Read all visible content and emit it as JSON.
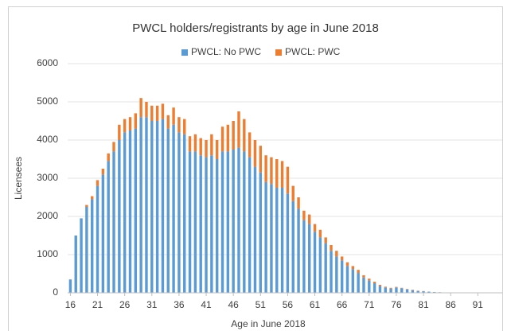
{
  "chart_data": {
    "type": "stacked_bar",
    "title": "PWCL holders/registrants by age in June 2018",
    "x_label": "Age in June 2018",
    "y_label": "Licensees",
    "x": [
      16,
      17,
      18,
      19,
      20,
      21,
      22,
      23,
      24,
      25,
      26,
      27,
      28,
      29,
      30,
      31,
      32,
      33,
      34,
      35,
      36,
      37,
      38,
      39,
      40,
      41,
      42,
      43,
      44,
      45,
      46,
      47,
      48,
      49,
      50,
      51,
      52,
      53,
      54,
      55,
      56,
      57,
      58,
      59,
      60,
      61,
      62,
      63,
      64,
      65,
      66,
      67,
      68,
      69,
      70,
      71,
      72,
      73,
      74,
      75,
      76,
      77,
      78,
      79,
      80,
      81,
      82,
      83,
      84,
      85,
      86,
      87,
      88,
      89,
      90,
      91,
      92,
      93,
      94,
      95
    ],
    "series": [
      {
        "name": "PWCL: No PWC",
        "color": "#5b9bd5",
        "values": [
          350,
          1500,
          1950,
          2250,
          2450,
          2800,
          3100,
          3450,
          3700,
          4000,
          4200,
          4250,
          4300,
          4600,
          4600,
          4500,
          4500,
          4550,
          4300,
          4400,
          4200,
          4150,
          3700,
          3700,
          3600,
          3550,
          3600,
          3500,
          3700,
          3700,
          3750,
          3800,
          3700,
          3550,
          3300,
          3150,
          2900,
          2850,
          2750,
          2750,
          2600,
          2400,
          2200,
          1900,
          1800,
          1600,
          1450,
          1300,
          1100,
          950,
          850,
          700,
          620,
          520,
          400,
          320,
          250,
          180,
          140,
          110,
          140,
          120,
          90,
          70,
          50,
          40,
          30,
          20,
          15,
          10,
          8,
          6,
          5,
          4,
          3,
          2,
          2,
          1,
          1,
          1
        ]
      },
      {
        "name": "PWCL: PWC",
        "color": "#ed7d31",
        "values": [
          0,
          0,
          0,
          50,
          80,
          150,
          150,
          200,
          250,
          400,
          350,
          350,
          400,
          500,
          400,
          400,
          400,
          400,
          350,
          450,
          400,
          400,
          400,
          450,
          450,
          450,
          550,
          500,
          650,
          700,
          750,
          950,
          850,
          650,
          700,
          700,
          700,
          700,
          750,
          700,
          700,
          400,
          300,
          250,
          250,
          200,
          200,
          150,
          150,
          150,
          100,
          100,
          80,
          80,
          60,
          50,
          40,
          30,
          20,
          20,
          15,
          10,
          10,
          10,
          5,
          5,
          0,
          0,
          0,
          0,
          0,
          0,
          0,
          0,
          0,
          0,
          0,
          0,
          0,
          0
        ]
      }
    ],
    "xlim": [
      15.5,
      95.5
    ],
    "xticks": [
      16,
      21,
      26,
      31,
      36,
      41,
      46,
      51,
      56,
      61,
      66,
      71,
      76,
      81,
      86,
      91
    ],
    "ylim": [
      0,
      6000
    ],
    "yticks": [
      0,
      1000,
      2000,
      3000,
      4000,
      5000,
      6000
    ],
    "grid": true,
    "legend": "top"
  }
}
